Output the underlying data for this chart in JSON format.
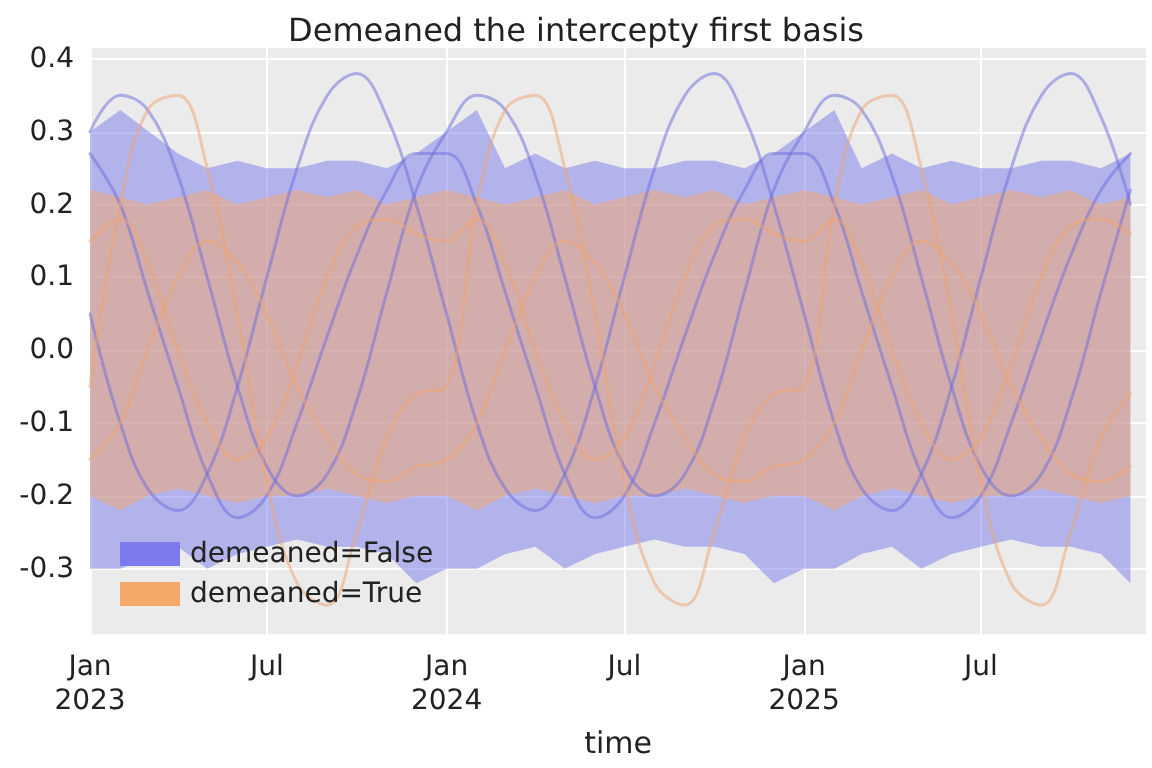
{
  "chart_data": {
    "type": "line",
    "title": "Demeaned the intercepty first basis",
    "xlabel": "time",
    "x": [
      "2023-01",
      "2023-02",
      "2023-03",
      "2023-04",
      "2023-05",
      "2023-06",
      "2023-07",
      "2023-08",
      "2023-09",
      "2023-10",
      "2023-11",
      "2023-12",
      "2024-01",
      "2024-02",
      "2024-03",
      "2024-04",
      "2024-05",
      "2024-06",
      "2024-07",
      "2024-08",
      "2024-09",
      "2024-10",
      "2024-11",
      "2024-12",
      "2025-01",
      "2025-02",
      "2025-03",
      "2025-04",
      "2025-05",
      "2025-06",
      "2025-07",
      "2025-08",
      "2025-09",
      "2025-10",
      "2025-11",
      "2025-12"
    ],
    "xlim": [
      "2023-01-01",
      "2025-12-17"
    ],
    "xticks": [
      {
        "value": "2023-01-01",
        "label": "Jan\n2023"
      },
      {
        "value": "2023-07-01",
        "label": "Jul"
      },
      {
        "value": "2024-01-01",
        "label": "Jan\n2024"
      },
      {
        "value": "2024-07-01",
        "label": "Jul"
      },
      {
        "value": "2025-01-01",
        "label": "Jan\n2025"
      },
      {
        "value": "2025-07-01",
        "label": "Jul"
      }
    ],
    "ylim": [
      -0.39,
      0.415
    ],
    "yticks": [
      -0.3,
      -0.2,
      -0.1,
      {
        "value": 0,
        "label": "0.0"
      },
      0.1,
      0.2,
      0.3,
      0.4
    ],
    "grid": true,
    "legend": "bottom left",
    "series": [
      {
        "name": "demeaned=False",
        "type": "area",
        "color": "#7b7bed",
        "values": [
          null,
          null,
          null,
          null,
          null,
          null,
          null,
          null,
          null,
          null,
          null,
          null,
          null,
          null,
          null,
          null,
          null,
          null,
          null,
          null,
          null,
          null,
          null,
          null,
          null,
          null,
          null,
          null,
          null,
          null,
          null,
          null,
          null,
          null,
          null,
          null
        ],
        "upper": [
          0.3,
          0.33,
          null,
          0.27,
          0.25,
          0.26,
          0.25,
          0.25,
          0.26,
          0.26,
          0.25,
          0.27,
          0.3,
          0.33,
          0.25,
          0.27,
          0.25,
          0.26,
          0.25,
          0.25,
          0.26,
          0.26,
          0.25,
          0.27,
          0.3,
          0.33,
          0.25,
          0.27,
          0.25,
          0.26,
          0.25,
          0.25,
          0.26,
          0.26,
          0.25,
          0.27
        ],
        "lower": [
          -0.3,
          -0.3,
          null,
          -0.27,
          -0.3,
          -0.28,
          -0.27,
          -0.26,
          -0.27,
          -0.27,
          -0.28,
          -0.32,
          -0.3,
          -0.3,
          -0.28,
          -0.27,
          -0.3,
          -0.28,
          -0.27,
          -0.26,
          -0.27,
          -0.27,
          -0.28,
          -0.32,
          -0.3,
          -0.3,
          -0.28,
          -0.27,
          -0.3,
          -0.28,
          -0.27,
          -0.26,
          -0.27,
          -0.27,
          -0.28,
          -0.32
        ]
      },
      {
        "name": "demeaned=True",
        "type": "area",
        "color": "#f4a86a",
        "values": [
          null,
          null,
          null,
          null,
          null,
          null,
          null,
          null,
          null,
          null,
          null,
          null,
          null,
          null,
          null,
          null,
          null,
          null,
          null,
          null,
          null,
          null,
          null,
          null,
          null,
          null,
          null,
          null,
          null,
          null,
          null,
          null,
          null,
          null,
          null,
          null
        ],
        "upper": [
          0.22,
          0.21,
          0.2,
          0.21,
          0.22,
          0.2,
          0.21,
          0.22,
          0.21,
          0.22,
          0.2,
          0.21,
          0.22,
          0.21,
          0.2,
          0.21,
          0.22,
          0.2,
          0.21,
          0.22,
          0.21,
          0.22,
          0.2,
          0.21,
          0.22,
          0.21,
          0.2,
          0.21,
          0.22,
          0.2,
          0.21,
          0.22,
          0.21,
          0.22,
          0.2,
          0.21
        ],
        "lower": [
          -0.2,
          -0.22,
          -0.2,
          -0.19,
          -0.2,
          -0.21,
          -0.2,
          -0.2,
          -0.19,
          -0.2,
          -0.21,
          -0.2,
          -0.2,
          -0.22,
          -0.2,
          -0.19,
          -0.2,
          -0.21,
          -0.2,
          -0.2,
          -0.19,
          -0.2,
          -0.21,
          -0.2,
          -0.2,
          -0.22,
          -0.2,
          -0.19,
          -0.2,
          -0.21,
          -0.2,
          -0.2,
          -0.19,
          -0.2,
          -0.21,
          -0.2
        ]
      },
      {
        "color": "#6b6bde",
        "values": [
          0.05,
          -0.1,
          -0.19,
          -0.22,
          -0.17,
          -0.05,
          0.1,
          0.25,
          0.35,
          0.38,
          0.32,
          0.2,
          0.05,
          -0.1,
          -0.19,
          -0.22,
          -0.17,
          -0.05,
          0.1,
          0.25,
          0.35,
          0.38,
          0.32,
          0.2,
          0.05,
          -0.1,
          -0.19,
          -0.22,
          -0.17,
          -0.05,
          0.1,
          0.25,
          0.35,
          0.38,
          0.32,
          0.2
        ]
      },
      {
        "color": "#6b6bde",
        "values": [
          0.3,
          0.35,
          0.33,
          0.24,
          0.1,
          -0.05,
          -0.16,
          -0.2,
          -0.17,
          -0.07,
          0.08,
          0.22,
          0.3,
          0.35,
          0.33,
          0.24,
          0.1,
          -0.05,
          -0.16,
          -0.2,
          -0.17,
          -0.07,
          0.08,
          0.22,
          0.3,
          0.35,
          0.33,
          0.24,
          0.1,
          -0.05,
          -0.16,
          -0.2,
          -0.17,
          -0.07,
          0.08,
          0.22
        ]
      },
      {
        "color": "#6b6bde",
        "values": [
          0.27,
          0.2,
          0.08,
          -0.05,
          -0.17,
          -0.23,
          -0.2,
          -0.1,
          0.02,
          0.13,
          0.22,
          0.27,
          0.27,
          0.2,
          0.08,
          -0.05,
          -0.17,
          -0.23,
          -0.2,
          -0.1,
          0.02,
          0.13,
          0.22,
          0.27,
          0.27,
          0.2,
          0.08,
          -0.05,
          -0.17,
          -0.23,
          -0.2,
          -0.1,
          0.02,
          0.13,
          0.22,
          0.27
        ]
      },
      {
        "color": "#f0a36f",
        "values": [
          -0.05,
          0.2,
          0.33,
          0.35,
          0.25,
          0.05,
          -0.18,
          -0.32,
          -0.35,
          -0.25,
          -0.12,
          -0.06,
          -0.05,
          0.2,
          0.33,
          0.35,
          0.25,
          0.05,
          -0.18,
          -0.32,
          -0.35,
          -0.25,
          -0.12,
          -0.06,
          -0.05,
          0.2,
          0.33,
          0.35,
          0.25,
          0.05,
          -0.18,
          -0.32,
          -0.35,
          -0.25,
          -0.12,
          -0.06
        ]
      },
      {
        "color": "#f0a36f",
        "values": [
          0.15,
          0.18,
          0.12,
          0.0,
          -0.1,
          -0.15,
          -0.12,
          -0.02,
          0.1,
          0.17,
          0.18,
          0.16,
          0.15,
          0.18,
          0.12,
          0.0,
          -0.1,
          -0.15,
          -0.12,
          -0.02,
          0.1,
          0.17,
          0.18,
          0.16,
          0.15,
          0.18,
          0.12,
          0.0,
          -0.1,
          -0.15,
          -0.12,
          -0.02,
          0.1,
          0.17,
          0.18,
          0.16
        ]
      },
      {
        "color": "#f0a36f",
        "values": [
          -0.15,
          -0.1,
          0.0,
          0.1,
          0.15,
          0.12,
          0.05,
          -0.05,
          -0.12,
          -0.17,
          -0.18,
          -0.16,
          -0.15,
          -0.1,
          0.0,
          0.1,
          0.15,
          0.12,
          0.05,
          -0.05,
          -0.12,
          -0.17,
          -0.18,
          -0.16,
          -0.15,
          -0.1,
          0.0,
          0.1,
          0.15,
          0.12,
          0.05,
          -0.05,
          -0.12,
          -0.17,
          -0.18,
          -0.16
        ]
      }
    ]
  }
}
